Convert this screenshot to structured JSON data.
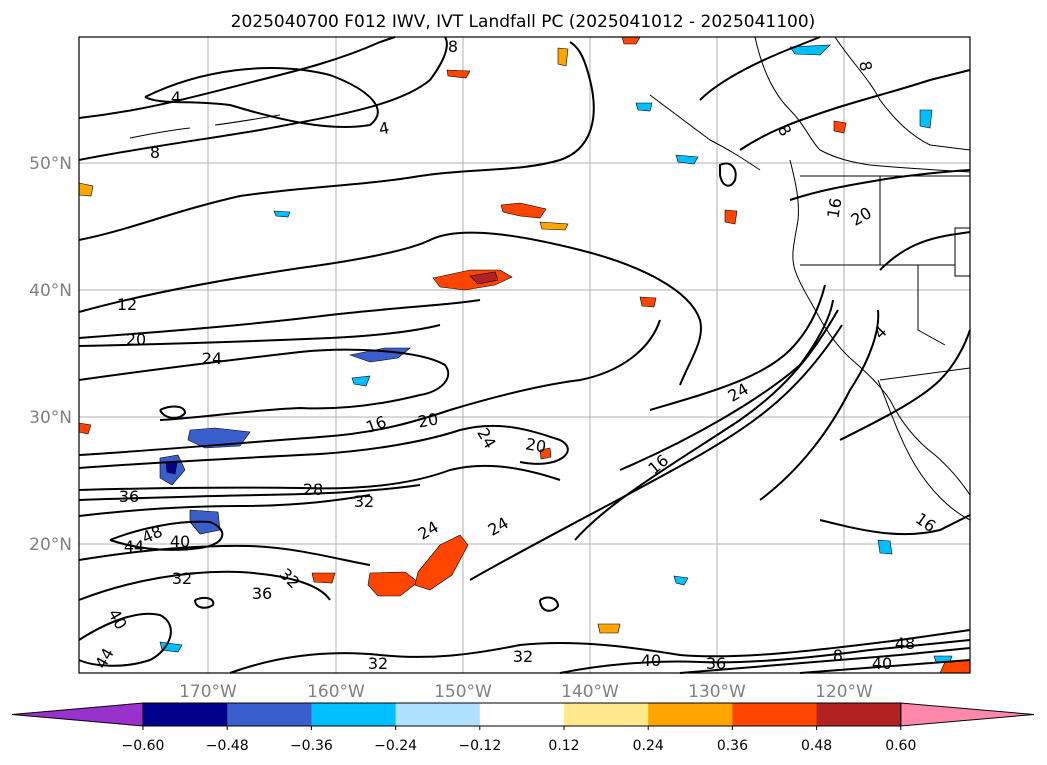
{
  "title": "2025040700 F012 IWV, IVT Landfall PC (2025041012 - 2025041100)",
  "map": {
    "lon_labels": [
      "170°W",
      "160°W",
      "150°W",
      "140°W",
      "130°W",
      "120°W"
    ],
    "lat_labels": [
      "50°N",
      "40°N",
      "30°N",
      "20°N"
    ],
    "grid": true,
    "contour_labels": [
      "4",
      "4",
      "8",
      "8",
      "12",
      "20",
      "24",
      "16",
      "20",
      "24",
      "20",
      "16",
      "24",
      "28",
      "32",
      "36",
      "48",
      "44",
      "40",
      "32",
      "36",
      "32",
      "40",
      "44",
      "24",
      "24",
      "32",
      "32",
      "40",
      "36",
      "48",
      "40",
      "8",
      "16",
      "8",
      "8",
      "4",
      "16",
      "20"
    ]
  },
  "colorbar": {
    "ticks": [
      "−0.60",
      "−0.48",
      "−0.36",
      "−0.24",
      "−0.12",
      "0.12",
      "0.24",
      "0.36",
      "0.48",
      "0.60"
    ],
    "colors": [
      "#9932CC",
      "#00008B",
      "#3A5FCD",
      "#00BFFF",
      "#B0E2FF",
      "#FFFFFF",
      "#FFE78C",
      "#FFA500",
      "#FF4500",
      "#B22222",
      "#FF88AA"
    ]
  }
}
